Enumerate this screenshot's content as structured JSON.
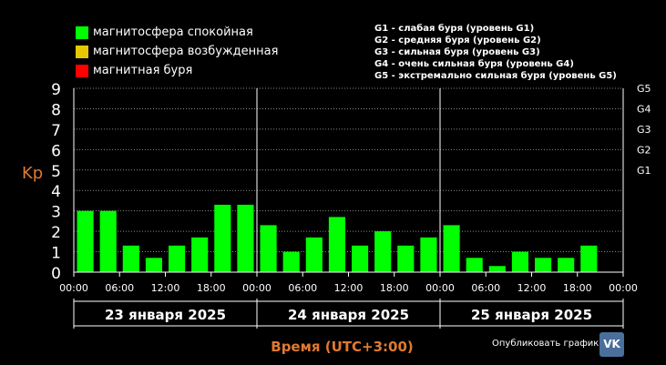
{
  "legend": {
    "items": [
      {
        "label": "магнитосфера спокойная",
        "color": "#00ff00"
      },
      {
        "label": "магнитосфера возбужденная",
        "color": "#e6c800"
      },
      {
        "label": "магнитная буря",
        "color": "#ff0000"
      }
    ],
    "storm_levels": [
      "G1 - слабая буря (уровень G1)",
      "G2 - средняя буря (уровень G2)",
      "G3 - сильная буря (уровень G3)",
      "G4 - очень сильная буря (уровень G4)",
      "G5 - экстремально сильная буря (уровень G5)"
    ]
  },
  "footer": {
    "publish_label": "Опубликовать график:",
    "vk_icon": "vk-icon"
  },
  "chart_data": {
    "type": "bar",
    "ylabel": "Kp",
    "xlabel": "Время (UTC+3:00)",
    "ylim": [
      0,
      9
    ],
    "yticks": [
      0,
      1,
      2,
      3,
      4,
      5,
      6,
      7,
      8,
      9
    ],
    "g_levels": [
      {
        "label": "G1",
        "value": 5
      },
      {
        "label": "G2",
        "value": 6
      },
      {
        "label": "G3",
        "value": 7
      },
      {
        "label": "G4",
        "value": 8
      },
      {
        "label": "G5",
        "value": 9
      }
    ],
    "x_tick_labels": [
      "00:00",
      "06:00",
      "12:00",
      "18:00",
      "00:00",
      "06:00",
      "12:00",
      "18:00",
      "00:00",
      "06:00",
      "12:00",
      "18:00",
      "00:00"
    ],
    "days": [
      "23 января 2025",
      "24 января 2025",
      "25 января 2025"
    ],
    "grid": true,
    "bar_color": "#00ff00",
    "series": [
      {
        "values": [
          3.0,
          3.0,
          1.3,
          0.7,
          1.3,
          1.7,
          3.3,
          3.3,
          2.3,
          1.0,
          1.7,
          2.7,
          1.3,
          2.0,
          1.3,
          1.7,
          2.3,
          0.7,
          0.3,
          1.0,
          0.7,
          0.7,
          1.3
        ]
      }
    ]
  }
}
